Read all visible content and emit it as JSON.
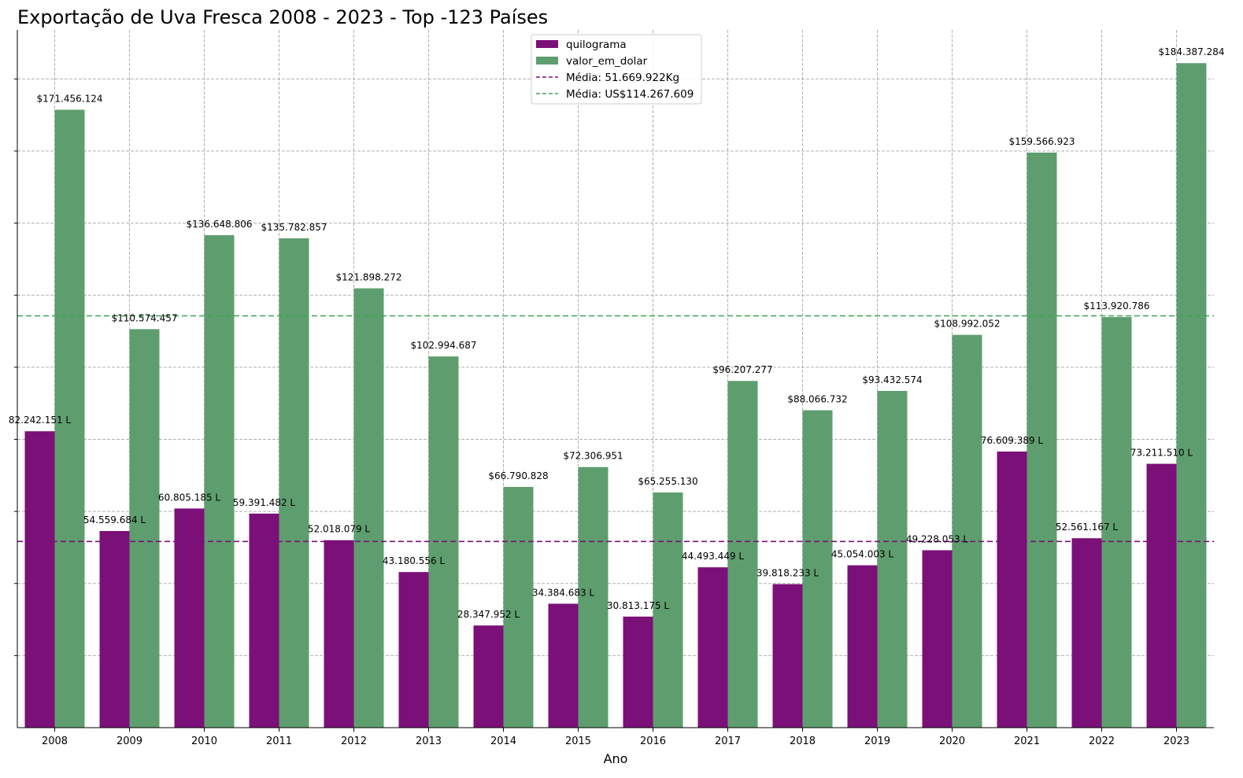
{
  "chart_data": {
    "type": "bar",
    "title": "Exportação de Uva Fresca 2008 - 2023 - Top -123 Países",
    "xlabel": "Ano",
    "ylabel": "",
    "categories": [
      "2008",
      "2009",
      "2010",
      "2011",
      "2012",
      "2013",
      "2014",
      "2015",
      "2016",
      "2017",
      "2018",
      "2019",
      "2020",
      "2021",
      "2022",
      "2023"
    ],
    "series": [
      {
        "name": "quilograma",
        "color": "#7b1078",
        "values": [
          82242151,
          54559684,
          60805185,
          59391482,
          52018079,
          43180556,
          28347952,
          34384683,
          30813175,
          44493449,
          39818233,
          45054003,
          49228053,
          76609389,
          52561167,
          73211510
        ],
        "labels": [
          "82.242.151 L",
          "54.559.684 L",
          "60.805.185 L",
          "59.391.482 L",
          "52.018.079 L",
          "43.180.556 L",
          "28.347.952 L",
          "34.384.683 L",
          "30.813.175 L",
          "44.493.449 L",
          "39.818.233 L",
          "45.054.003 L",
          "49.228.053 L",
          "76.609.389 L",
          "52.561.167 L",
          "73.211.510 L"
        ]
      },
      {
        "name": "valor_em_dolar",
        "color": "#5e9e6e",
        "values": [
          171456124,
          110574457,
          136648806,
          135782857,
          121898272,
          102994687,
          66790828,
          72306951,
          65255130,
          96207277,
          88066732,
          93432574,
          108992052,
          159566923,
          113920786,
          184387284
        ],
        "labels": [
          "$171.456.124",
          "$110.574.457",
          "$136.648.806",
          "$135.782.857",
          "$121.898.272",
          "$102.994.687",
          "$66.790.828",
          "$72.306.951",
          "$65.255.130",
          "$96.207.277",
          "$88.066.732",
          "$93.432.574",
          "$108.992.052",
          "$159.566.923",
          "$113.920.786",
          "$184.387.284"
        ]
      }
    ],
    "reference_lines": [
      {
        "label": "Média: 51.669.922Kg",
        "value": 51669922,
        "color": "#7b1078",
        "style": "dashed"
      },
      {
        "label": "Média: US$114.267.609",
        "value": 114267609,
        "color": "#3aa655",
        "style": "dashed"
      }
    ],
    "ylim": [
      0,
      193606648
    ],
    "grid": true,
    "y_tick_labels_visible": false,
    "legend_position": "top-center"
  }
}
